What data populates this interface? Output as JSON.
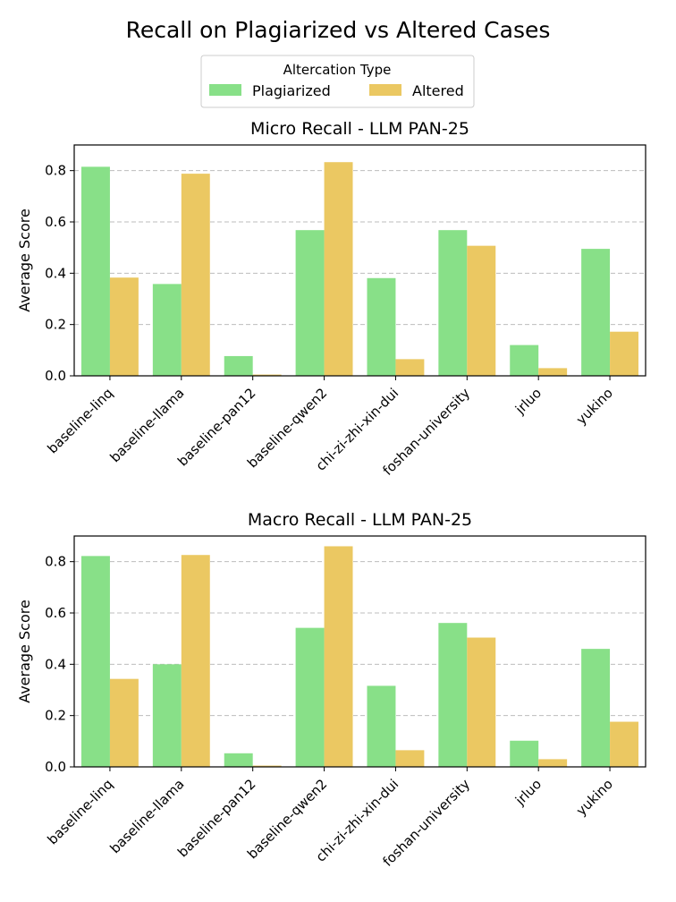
{
  "figure": {
    "title": "Recall on Plagiarized vs Altered Cases"
  },
  "legend": {
    "title": "Altercation Type",
    "placement": "top-center",
    "entries": [
      {
        "label": "Plagiarized",
        "color": "#88e088"
      },
      {
        "label": "Altered",
        "color": "#ebc862"
      }
    ]
  },
  "chart_data": [
    {
      "type": "bar",
      "title": "Micro Recall - LLM PAN-25",
      "xlabel": "",
      "ylabel": "Average Score",
      "ylim": [
        0,
        0.9
      ],
      "yticks": [
        "0.0",
        "0.2",
        "0.4",
        "0.6",
        "0.8"
      ],
      "grid": "y-dashed",
      "categories": [
        "baseline-linq",
        "baseline-llama",
        "baseline-pan12",
        "baseline-qwen2",
        "chi-zi-zhi-xin-dui",
        "foshan-university",
        "jrluo",
        "yukino"
      ],
      "series": [
        {
          "name": "Plagiarized",
          "color": "#88e088",
          "values": [
            0.815,
            0.358,
            0.077,
            0.568,
            0.381,
            0.568,
            0.12,
            0.495
          ]
        },
        {
          "name": "Altered",
          "color": "#ebc862",
          "values": [
            0.383,
            0.788,
            0.005,
            0.833,
            0.065,
            0.507,
            0.03,
            0.172
          ]
        }
      ]
    },
    {
      "type": "bar",
      "title": "Macro Recall - LLM PAN-25",
      "xlabel": "",
      "ylabel": "Average Score",
      "ylim": [
        0,
        0.9
      ],
      "yticks": [
        "0.0",
        "0.2",
        "0.4",
        "0.6",
        "0.8"
      ],
      "grid": "y-dashed",
      "categories": [
        "baseline-linq",
        "baseline-llama",
        "baseline-pan12",
        "baseline-qwen2",
        "chi-zi-zhi-xin-dui",
        "foshan-university",
        "jrluo",
        "yukino"
      ],
      "series": [
        {
          "name": "Plagiarized",
          "color": "#88e088",
          "values": [
            0.822,
            0.4,
            0.053,
            0.542,
            0.316,
            0.561,
            0.102,
            0.46
          ]
        },
        {
          "name": "Altered",
          "color": "#ebc862",
          "values": [
            0.343,
            0.826,
            0.005,
            0.86,
            0.065,
            0.504,
            0.03,
            0.176
          ]
        }
      ]
    }
  ]
}
